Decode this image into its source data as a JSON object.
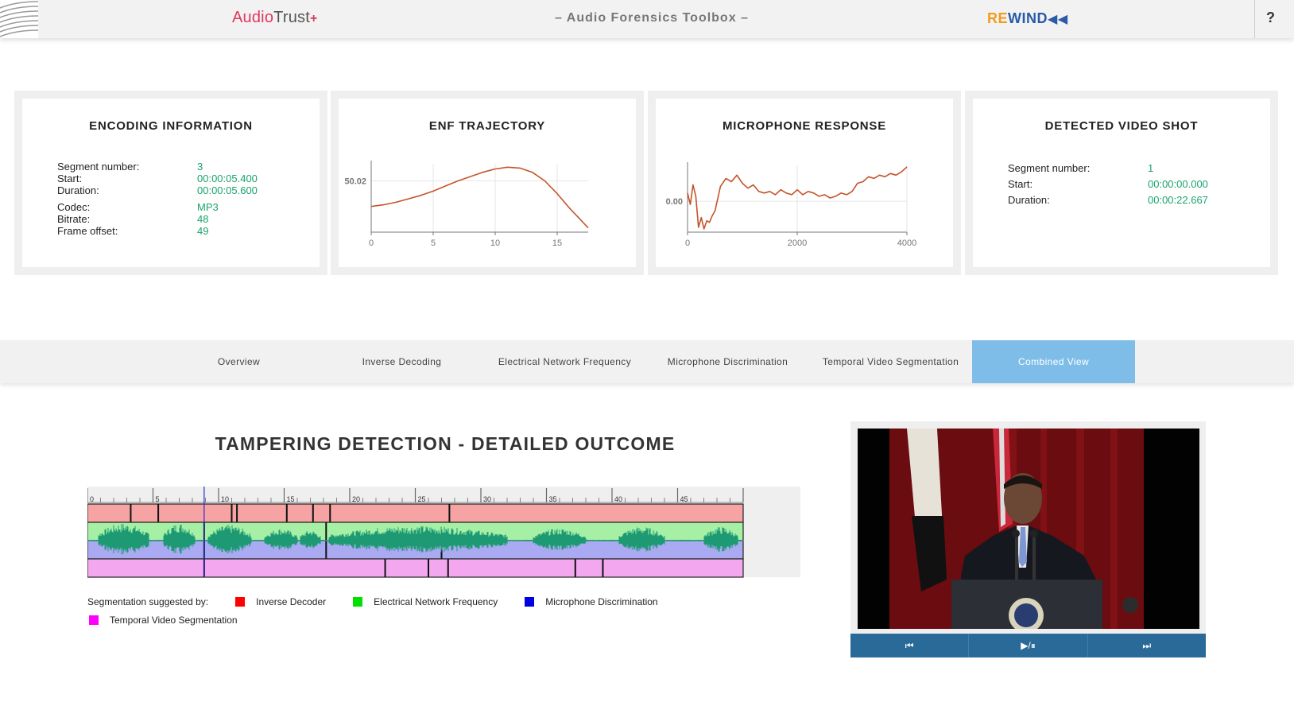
{
  "header": {
    "brand_left_1": "Audio",
    "brand_left_2": "Trust",
    "brand_left_3": "+",
    "title": "– Audio Forensics Toolbox –",
    "brand_right_1": "RE",
    "brand_right_2": "WIND",
    "brand_right_3": "◀◀",
    "help": "?"
  },
  "encoding": {
    "title": "ENCODING INFORMATION",
    "rows": [
      {
        "k": "Segment number:",
        "v": "3"
      },
      {
        "k": "Start:",
        "v": "00:00:05.400"
      },
      {
        "k": "Duration:",
        "v": "00:00:05.600"
      },
      {
        "k": "Codec:",
        "v": "MP3"
      },
      {
        "k": "Bitrate:",
        "v": "48"
      },
      {
        "k": "Frame offset:",
        "v": "49"
      }
    ]
  },
  "enf": {
    "title": "ENF TRAJECTORY",
    "chart_data": {
      "type": "line",
      "x": [
        0,
        1,
        2,
        3,
        4,
        5,
        6,
        7,
        8,
        9,
        10,
        11,
        12,
        13,
        14,
        15,
        16,
        17.5
      ],
      "y": [
        49.99,
        49.992,
        49.995,
        49.999,
        50.003,
        50.008,
        50.014,
        50.02,
        50.025,
        50.03,
        50.034,
        50.036,
        50.035,
        50.03,
        50.02,
        50.005,
        49.988,
        49.965
      ],
      "xticks": [
        "0",
        "5",
        "10",
        "15"
      ],
      "yticks": [
        "50.02"
      ],
      "xlim": [
        0,
        17.5
      ],
      "ylim": [
        49.96,
        50.04
      ],
      "color": "#c4542a"
    }
  },
  "mic": {
    "title": "MICROPHONE RESPONSE",
    "chart_data": {
      "type": "line",
      "x": [
        0,
        50,
        100,
        150,
        200,
        250,
        300,
        350,
        400,
        450,
        500,
        600,
        700,
        800,
        900,
        1000,
        1100,
        1200,
        1300,
        1400,
        1500,
        1600,
        1700,
        1800,
        1900,
        2000,
        2100,
        2200,
        2300,
        2400,
        2500,
        2600,
        2700,
        2800,
        2900,
        3000,
        3100,
        3200,
        3300,
        3400,
        3500,
        3600,
        3700,
        3800,
        3900,
        4000
      ],
      "y": [
        0.5,
        -0.2,
        1.0,
        0.3,
        -1.6,
        -1.0,
        -1.7,
        -1.2,
        -1.3,
        -0.9,
        -0.6,
        0.9,
        1.4,
        1.2,
        1.6,
        1.1,
        0.8,
        1.0,
        0.6,
        0.5,
        0.6,
        0.4,
        0.7,
        0.5,
        0.4,
        0.7,
        0.4,
        0.6,
        0.5,
        0.3,
        0.4,
        0.2,
        0.3,
        0.5,
        0.4,
        0.6,
        1.1,
        1.2,
        1.5,
        1.4,
        1.6,
        1.5,
        1.7,
        1.6,
        1.8,
        2.1
      ],
      "xticks": [
        "0",
        "2000",
        "4000"
      ],
      "yticks": [
        "0.00"
      ],
      "xlim": [
        0,
        4000
      ],
      "ylim": [
        -1.9,
        2.2
      ],
      "color": "#c4542a"
    }
  },
  "videoshot": {
    "title": "DETECTED VIDEO SHOT",
    "rows": [
      {
        "k": "Segment number:",
        "v": "1"
      },
      {
        "k": "Start:",
        "v": "00:00:00.000"
      },
      {
        "k": "Duration:",
        "v": "00:00:22.667"
      }
    ]
  },
  "tabs": [
    {
      "label": "Overview",
      "active": false
    },
    {
      "label": "Inverse Decoding",
      "active": false
    },
    {
      "label": "Electrical Network Frequency",
      "active": false
    },
    {
      "label": "Microphone Discrimination",
      "active": false
    },
    {
      "label": "Temporal Video Segmentation",
      "active": false
    },
    {
      "label": "Combined View",
      "active": true
    }
  ],
  "main_title": "TAMPERING DETECTION - DETAILED OUTCOME",
  "timeline": {
    "ruler_labels": [
      "0",
      "5",
      "10",
      "15",
      "20",
      "25",
      "30",
      "35",
      "40",
      "45"
    ],
    "total_seconds": 50,
    "inverse_decoder_boundaries": [
      3.3,
      5.4,
      11.0,
      11.4,
      15.2,
      17.2,
      18.5,
      27.6
    ],
    "enf_boundaries": [
      8.9,
      18.2
    ],
    "mic_boundaries": [
      8.9,
      18.2,
      27.0
    ],
    "tvs_boundaries": [
      8.9,
      22.7,
      26.0,
      27.5,
      37.2,
      39.3
    ],
    "colors": {
      "inverse": "#f5a3a3",
      "enf": "#a6f0a6",
      "mic": "#aaaaf2",
      "tvs": "#f3a7ef",
      "wave": "#1d9a73",
      "cursor": "#2a2ad0"
    },
    "cursor_seconds": 8.9
  },
  "legend": {
    "prefix": "Segmentation suggested by:",
    "items": [
      {
        "label": "Inverse Decoder",
        "color": "#ff0000"
      },
      {
        "label": "Electrical Network Frequency",
        "color": "#00e000"
      },
      {
        "label": "Microphone Discrimination",
        "color": "#0000e0"
      },
      {
        "label": "Temporal Video Segmentation",
        "color": "#ff00ff"
      }
    ]
  },
  "video": {
    "prev": "⏮",
    "playpause": "▶/⏸",
    "next": "⏭"
  }
}
